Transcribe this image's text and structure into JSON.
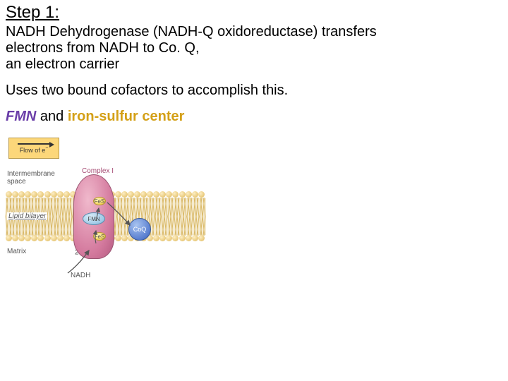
{
  "title": "Step 1:",
  "paragraph1_line1": "NADH Dehydrogenase (NADH-Q oxidoreductase)  transfers",
  "paragraph1_line2": "electrons from NADH to Co. Q,",
  "paragraph1_line3": " an electron carrier",
  "paragraph2": "Uses two bound cofactors to accomplish this.",
  "cofactor_fmn": "FMN",
  "cofactor_and": " and ",
  "cofactor_iron": "iron-sulfur center",
  "diagram": {
    "flow_label_pre": "Flow of e",
    "flow_label_sup": "−",
    "intermembrane_l1": "Intermembrane",
    "intermembrane_l2": "space",
    "complex1": "Complex I",
    "lipid": "Lipid bilayer",
    "matrix": "Matrix",
    "nadh": "NADH",
    "fes": "FeS",
    "fmn": "FMN",
    "two_e_pre": "2 e",
    "two_e_sup": "−",
    "coq": "CoQ",
    "colors": {
      "flowbox_bg": "#fcd77a",
      "complex_fill": "#d47a9e",
      "fes_fill": "#f2d25a",
      "fmn_fill": "#9fc9e6",
      "coq_fill": "#5a7fd0",
      "membrane_head": "#e8c878",
      "membrane_tail": "#d9b866",
      "fmn_text": "#6a3da8",
      "iron_text": "#d4a017"
    }
  }
}
